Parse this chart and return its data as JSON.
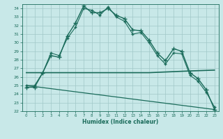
{
  "xlabel": "Humidex (Indice chaleur)",
  "background_color": "#c8e8e8",
  "grid_color": "#a0c8c8",
  "line_color": "#1a6b5a",
  "xlim": [
    -0.5,
    23.5
  ],
  "ylim": [
    22,
    34.5
  ],
  "yticks": [
    22,
    23,
    24,
    25,
    26,
    27,
    28,
    29,
    30,
    31,
    32,
    33,
    34
  ],
  "xticks": [
    0,
    1,
    2,
    3,
    4,
    5,
    6,
    7,
    8,
    9,
    10,
    11,
    12,
    13,
    14,
    15,
    16,
    17,
    18,
    19,
    20,
    21,
    22,
    23
  ],
  "series": [
    {
      "x": [
        0,
        1,
        2,
        3,
        4,
        5,
        6,
        7,
        8,
        9,
        10,
        11,
        12,
        13,
        14,
        15,
        16,
        17,
        18,
        19,
        20,
        21,
        22,
        23
      ],
      "y": [
        24.8,
        24.8,
        26.5,
        28.5,
        28.3,
        30.8,
        32.3,
        34.3,
        33.5,
        33.5,
        34.0,
        33.2,
        32.8,
        31.5,
        31.4,
        30.3,
        28.8,
        27.9,
        29.3,
        29.0,
        26.5,
        25.8,
        24.5,
        22.2
      ],
      "marker": "+",
      "markersize": 4,
      "linewidth": 1.0
    },
    {
      "x": [
        0,
        1,
        2,
        3,
        4,
        5,
        6,
        7,
        8,
        9,
        10,
        11,
        12,
        13,
        14,
        15,
        16,
        17,
        18,
        19,
        20,
        21,
        22,
        23
      ],
      "y": [
        25.0,
        25.0,
        26.5,
        28.8,
        28.5,
        30.5,
        31.8,
        34.0,
        33.8,
        33.2,
        34.2,
        33.0,
        32.5,
        31.0,
        31.2,
        30.0,
        28.5,
        27.5,
        28.8,
        28.7,
        26.2,
        25.5,
        24.2,
        22.5
      ],
      "marker": "+",
      "markersize": 3,
      "linewidth": 0.8
    },
    {
      "x": [
        0,
        2,
        5,
        10,
        15,
        20,
        23
      ],
      "y": [
        26.5,
        26.5,
        26.5,
        26.5,
        26.5,
        26.7,
        26.8
      ],
      "marker": null,
      "linewidth": 1.2
    },
    {
      "x": [
        0,
        23
      ],
      "y": [
        25.0,
        22.2
      ],
      "marker": null,
      "linewidth": 0.9
    }
  ]
}
